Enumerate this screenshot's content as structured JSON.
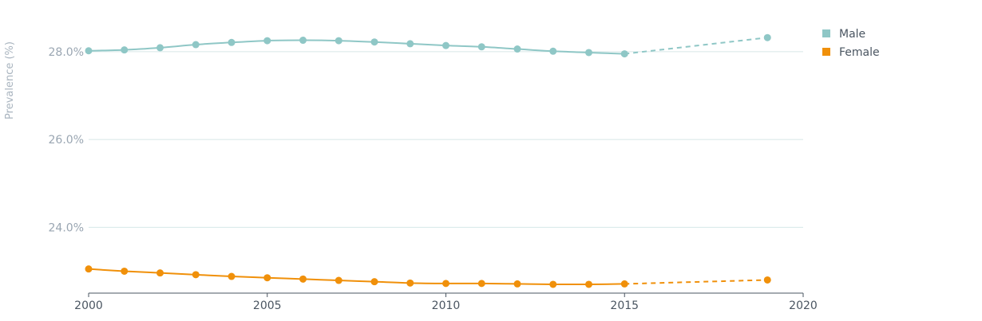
{
  "chart_data": {
    "type": "line",
    "ylabel": "Prevalence (%)",
    "xlim": [
      2000,
      2020
    ],
    "ylim": [
      22.5,
      28.85
    ],
    "x_ticks": [
      2000,
      2005,
      2010,
      2015,
      2020
    ],
    "y_ticks": [
      24.0,
      26.0,
      28.0
    ],
    "y_tick_labels": [
      "24.0%",
      "26.0%",
      "28.0%"
    ],
    "grid": true,
    "legend_position": "top-right",
    "series": [
      {
        "name": "Male",
        "color": "#8fc7c6",
        "x": [
          2000,
          2001,
          2002,
          2003,
          2004,
          2005,
          2006,
          2007,
          2008,
          2009,
          2010,
          2011,
          2012,
          2013,
          2014,
          2015
        ],
        "values": [
          28.02,
          28.04,
          28.09,
          28.16,
          28.21,
          28.25,
          28.26,
          28.25,
          28.22,
          28.18,
          28.14,
          28.11,
          28.06,
          28.01,
          27.98,
          27.95
        ],
        "projection": {
          "x": [
            2015,
            2019
          ],
          "values": [
            27.95,
            28.32
          ]
        }
      },
      {
        "name": "Female",
        "color": "#f0900a",
        "x": [
          2000,
          2001,
          2002,
          2003,
          2004,
          2005,
          2006,
          2007,
          2008,
          2009,
          2010,
          2011,
          2012,
          2013,
          2014,
          2015
        ],
        "values": [
          23.05,
          23.0,
          22.96,
          22.92,
          22.88,
          22.85,
          22.82,
          22.79,
          22.76,
          22.73,
          22.72,
          22.72,
          22.71,
          22.7,
          22.7,
          22.71
        ],
        "projection": {
          "x": [
            2015,
            2019
          ],
          "values": [
            22.71,
            22.8
          ]
        }
      }
    ]
  }
}
